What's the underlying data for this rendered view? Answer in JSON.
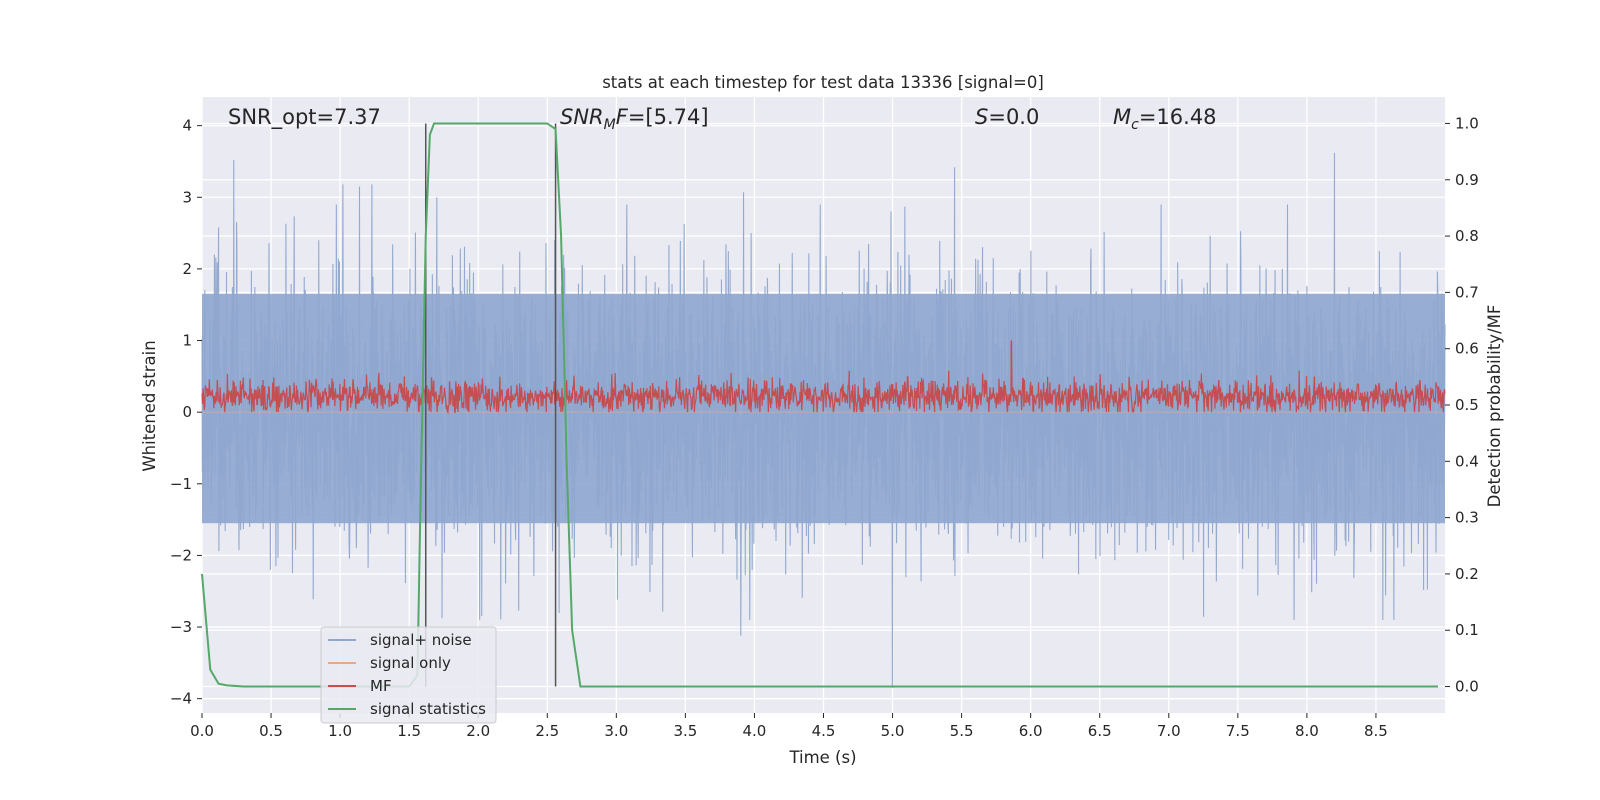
{
  "chart_data": {
    "type": "line",
    "title": "stats at each timestep for test data 13336 [signal=0]",
    "xlabel": "Time (s)",
    "ylabel": "Whitened strain",
    "y2label": "Detection probability/MF",
    "xlim": [
      0.0,
      9.0
    ],
    "ylim": [
      -4.2,
      4.4
    ],
    "y2lim": [
      -0.047,
      1.047
    ],
    "xticks": [
      0.0,
      0.5,
      1.0,
      1.5,
      2.0,
      2.5,
      3.0,
      3.5,
      4.0,
      4.5,
      5.0,
      5.5,
      6.0,
      6.5,
      7.0,
      7.5,
      8.0,
      8.5
    ],
    "xtick_labels": [
      "0.0",
      "0.5",
      "1.0",
      "1.5",
      "2.0",
      "2.5",
      "3.0",
      "3.5",
      "4.0",
      "4.5",
      "5.0",
      "5.5",
      "6.0",
      "6.5",
      "7.0",
      "7.5",
      "8.0",
      "8.5"
    ],
    "yticks": [
      4,
      3,
      2,
      1,
      0,
      -1,
      -2,
      -3,
      -4
    ],
    "ytick_labels": [
      "4",
      "3",
      "2",
      "1",
      "0",
      "−1",
      "−2",
      "−3",
      "−4"
    ],
    "y2ticks": [
      1.0,
      0.9,
      0.8,
      0.7,
      0.6,
      0.5,
      0.4,
      0.3,
      0.2,
      0.1,
      0.0
    ],
    "y2tick_labels": [
      "1.0",
      "0.9",
      "0.8",
      "0.7",
      "0.6",
      "0.5",
      "0.4",
      "0.3",
      "0.2",
      "0.1",
      "0.0"
    ],
    "grid": true,
    "legend_position": "bottom-left",
    "annotations": [
      {
        "id": "snr-opt",
        "label": "SNR_opt=7.37",
        "x": 0.2
      },
      {
        "id": "snr-mf",
        "label": "=[5.74]",
        "label_math_main": "SNR",
        "label_math_sub": "M",
        "label_math_tail": "F",
        "x": 2.6
      },
      {
        "id": "s-stat",
        "label_math_main": "S",
        "label": "=0.0",
        "x": 5.6
      },
      {
        "id": "chirp-mass",
        "label_math_main": "M",
        "label_math_sub": "c",
        "label": "=16.48",
        "x": 6.6
      }
    ],
    "vlines": [
      {
        "x": 1.62,
        "y2_range": [
          0.0,
          1.0
        ]
      },
      {
        "x": 2.56,
        "y2_range": [
          0.0,
          1.0
        ]
      }
    ],
    "series": [
      {
        "name": "signal+ noise",
        "color": "#8fa6cf",
        "axis": "left",
        "description_values": {
          "t_start": 0.0,
          "t_end": 9.0,
          "typical_range": [
            -1.6,
            1.6
          ],
          "max": 3.62,
          "min": -3.85
        },
        "notable_points": [
          {
            "x": 0.23,
            "y": 3.52
          },
          {
            "x": 0.12,
            "y": 2.58
          },
          {
            "x": 1.02,
            "y": 3.18
          },
          {
            "x": 1.14,
            "y": 3.15
          },
          {
            "x": 1.23,
            "y": 3.18
          },
          {
            "x": 1.7,
            "y": 3.0
          },
          {
            "x": 3.92,
            "y": 3.07
          },
          {
            "x": 3.9,
            "y": -3.12
          },
          {
            "x": 5.0,
            "y": -3.85
          },
          {
            "x": 5.45,
            "y": 3.42
          },
          {
            "x": 8.2,
            "y": 3.62
          },
          {
            "x": 8.63,
            "y": -2.9
          },
          {
            "x": 8.55,
            "y": -2.9
          }
        ]
      },
      {
        "name": "signal only",
        "color": "#e8a98b",
        "axis": "left",
        "values_note": "flat at zero (no signal)"
      },
      {
        "name": "MF",
        "color": "#c44e52",
        "axis": "left",
        "description_values": {
          "typical_range": [
            0.0,
            0.55
          ],
          "peak": {
            "x": 5.86,
            "y": 1.0
          }
        }
      },
      {
        "name": "signal statistics",
        "color": "#55a868",
        "axis": "right",
        "x": [
          0.0,
          0.06,
          0.12,
          0.18,
          0.3,
          1.5,
          1.56,
          1.58,
          1.62,
          1.65,
          1.68,
          2.5,
          2.56,
          2.6,
          2.64,
          2.68,
          2.74,
          8.95
        ],
        "y": [
          0.2,
          0.03,
          0.005,
          0.002,
          0.0,
          0.0,
          0.02,
          0.3,
          0.8,
          0.98,
          1.0,
          1.0,
          0.99,
          0.8,
          0.4,
          0.1,
          0.0,
          0.0
        ]
      }
    ]
  }
}
